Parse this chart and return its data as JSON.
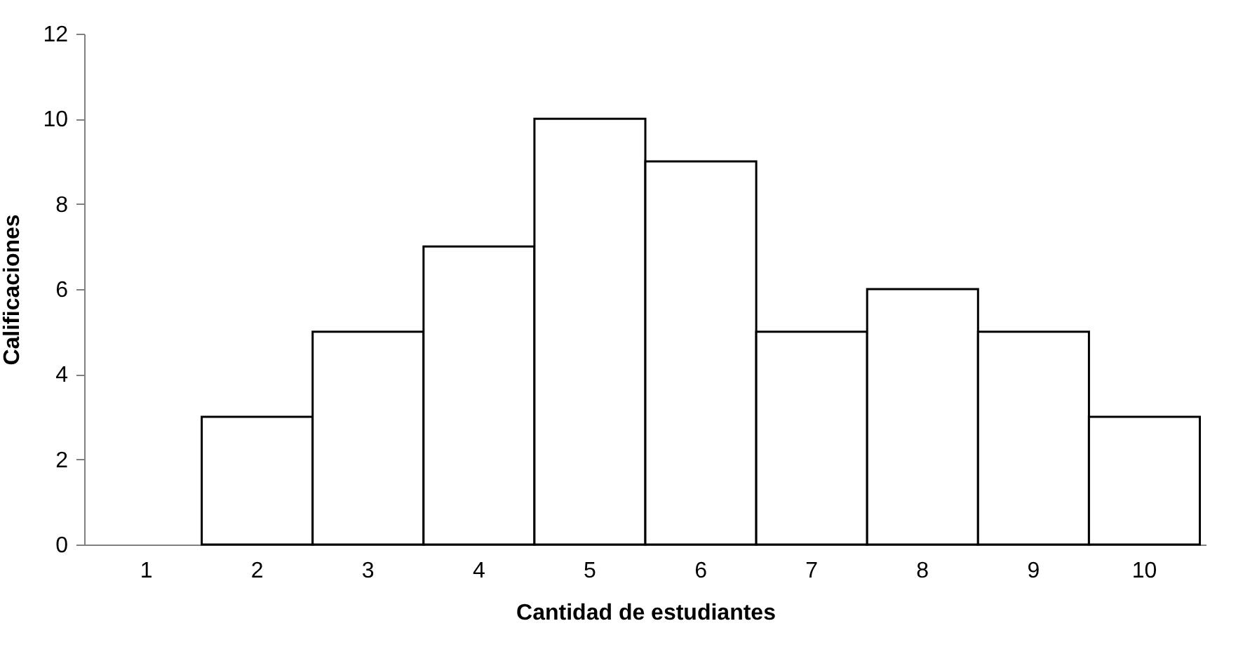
{
  "chart_data": {
    "type": "bar",
    "xlabel": "Cantidad de estudiantes",
    "ylabel": "Calificaciones",
    "categories": [
      "1",
      "2",
      "3",
      "4",
      "5",
      "6",
      "7",
      "8",
      "9",
      "10"
    ],
    "values": [
      0,
      3,
      5,
      7,
      10,
      9,
      5,
      6,
      5,
      3
    ],
    "color": "#ffffff",
    "ylim": [
      0,
      12
    ],
    "yticks": [
      0,
      2,
      4,
      6,
      8,
      10,
      12
    ],
    "grid": false
  }
}
